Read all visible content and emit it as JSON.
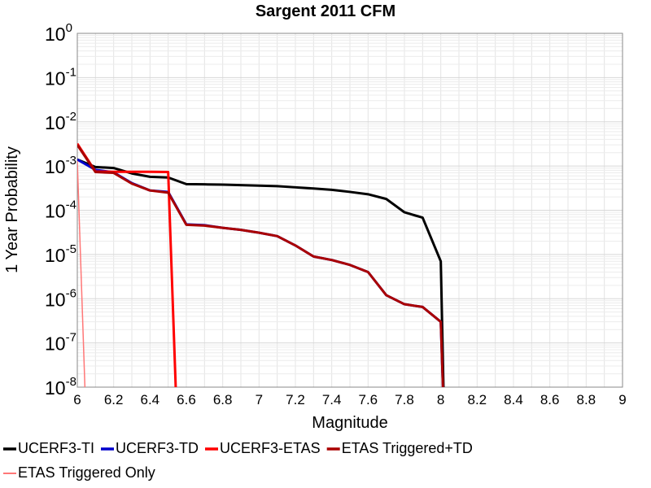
{
  "chart_data": {
    "type": "line",
    "title": "Sargent 2011 CFM",
    "xlabel": "Magnitude",
    "ylabel": "1 Year Probability",
    "xlim": [
      6,
      9
    ],
    "ylim": [
      1e-08,
      1
    ],
    "yscale": "log",
    "grid": true,
    "legend_position": "bottom",
    "xticks": [
      "6",
      "6.2",
      "6.4",
      "6.6",
      "6.8",
      "7",
      "7.2",
      "7.4",
      "7.6",
      "7.8",
      "8",
      "8.2",
      "8.4",
      "8.6",
      "8.8",
      "9"
    ],
    "yticks": [
      {
        "value": 1e-08,
        "base": "10",
        "exp": "-8"
      },
      {
        "value": 1e-07,
        "base": "10",
        "exp": "-7"
      },
      {
        "value": 1e-06,
        "base": "10",
        "exp": "-6"
      },
      {
        "value": 1e-05,
        "base": "10",
        "exp": "-5"
      },
      {
        "value": 0.0001,
        "base": "10",
        "exp": "-4"
      },
      {
        "value": 0.001,
        "base": "10",
        "exp": "-3"
      },
      {
        "value": 0.01,
        "base": "10",
        "exp": "-2"
      },
      {
        "value": 0.1,
        "base": "10",
        "exp": "-1"
      },
      {
        "value": 1,
        "base": "10",
        "exp": "0"
      }
    ],
    "series": [
      {
        "name": "UCERF3-TI",
        "color": "#000000",
        "width": 3,
        "x": [
          6.0,
          6.1,
          6.2,
          6.3,
          6.4,
          6.5,
          6.6,
          6.7,
          6.8,
          6.9,
          7.0,
          7.1,
          7.2,
          7.3,
          7.4,
          7.5,
          7.6,
          7.7,
          7.8,
          7.9,
          8.0,
          8.02
        ],
        "y": [
          0.0014,
          0.00095,
          0.0009,
          0.00068,
          0.00057,
          0.00055,
          0.00039,
          0.000385,
          0.00038,
          0.00037,
          0.00036,
          0.00035,
          0.00033,
          0.00031,
          0.00029,
          0.00026,
          0.00023,
          0.00018,
          9e-05,
          6.8e-05,
          7e-06,
          1e-09
        ]
      },
      {
        "name": "UCERF3-TD",
        "color": "#0000cc",
        "width": 3,
        "x": [
          6.0,
          6.1,
          6.2,
          6.3,
          6.4,
          6.5,
          6.6,
          6.7,
          6.8,
          6.9,
          7.0,
          7.1,
          7.2,
          7.3,
          7.4,
          7.5,
          7.6,
          7.7,
          7.8,
          7.9,
          8.0,
          8.02
        ],
        "y": [
          0.0014,
          0.00082,
          0.00072,
          0.00041,
          0.00028,
          0.00026,
          4.8e-05,
          4.6e-05,
          4e-05,
          3.6e-05,
          3.1e-05,
          2.6e-05,
          1.6e-05,
          9e-06,
          7.5e-06,
          5.8e-06,
          4e-06,
          1.2e-06,
          7.5e-07,
          6.5e-07,
          3e-07,
          1e-09
        ]
      },
      {
        "name": "UCERF3-ETAS",
        "color": "#ff0000",
        "width": 3,
        "x": [
          6.0,
          6.1,
          6.2,
          6.3,
          6.4,
          6.5,
          6.55
        ],
        "y": [
          0.0032,
          0.00075,
          0.00074,
          0.00074,
          0.00074,
          0.00073,
          1e-09
        ]
      },
      {
        "name": "ETAS Triggered+TD",
        "color": "#aa0000",
        "width": 3,
        "x": [
          6.0,
          6.1,
          6.2,
          6.3,
          6.4,
          6.5,
          6.6,
          6.7,
          6.8,
          6.9,
          7.0,
          7.1,
          7.2,
          7.3,
          7.4,
          7.5,
          7.6,
          7.7,
          7.8,
          7.9,
          8.0,
          8.02
        ],
        "y": [
          0.003,
          0.00073,
          0.0007,
          0.0004,
          0.00028,
          0.00025,
          4.7e-05,
          4.5e-05,
          4e-05,
          3.6e-05,
          3.1e-05,
          2.6e-05,
          1.6e-05,
          9e-06,
          7.5e-06,
          5.8e-06,
          4e-06,
          1.2e-06,
          7.5e-07,
          6.5e-07,
          3e-07,
          1e-09
        ]
      },
      {
        "name": "ETAS Triggered Only",
        "color": "#ff7777",
        "width": 1.5,
        "x": [
          6.0,
          6.05
        ],
        "y": [
          0.0013,
          1e-09
        ]
      }
    ]
  }
}
